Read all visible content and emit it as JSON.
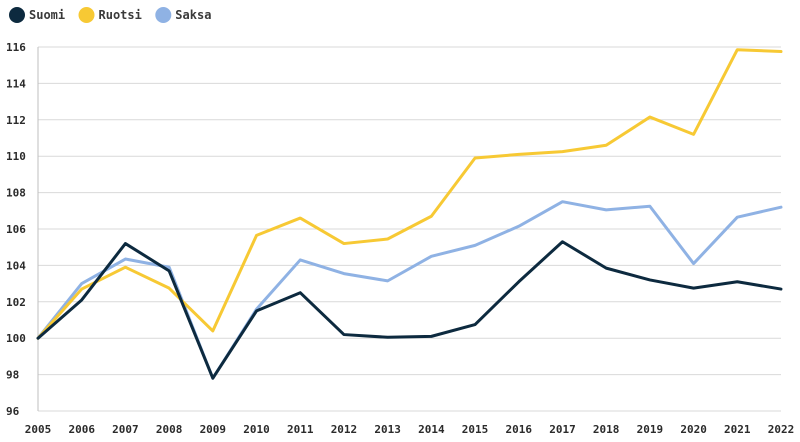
{
  "chart_data": {
    "type": "line",
    "title": "",
    "xlabel": "",
    "ylabel": "",
    "x": [
      "2005",
      "2006",
      "2007",
      "2008",
      "2009",
      "2010",
      "2011",
      "2012",
      "2013",
      "2014",
      "2015",
      "2016",
      "2017",
      "2018",
      "2019",
      "2020",
      "2021",
      "2022"
    ],
    "ylim": [
      96,
      116
    ],
    "yticks": [
      96,
      98,
      100,
      102,
      104,
      106,
      108,
      110,
      112,
      114,
      116
    ],
    "grid": "horizontal",
    "legend_position": "top-left",
    "series": [
      {
        "name": "Suomi",
        "color": "#0d2a3f",
        "values": [
          100.0,
          102.1,
          105.2,
          103.7,
          97.8,
          101.5,
          102.5,
          100.2,
          100.05,
          100.1,
          100.75,
          103.1,
          105.3,
          103.85,
          103.2,
          102.75,
          103.1,
          102.7
        ]
      },
      {
        "name": "Ruotsi",
        "color": "#f7c934",
        "values": [
          100.0,
          102.7,
          103.9,
          102.75,
          100.4,
          105.65,
          106.6,
          105.2,
          105.45,
          106.7,
          109.9,
          110.1,
          110.25,
          110.6,
          112.15,
          111.2,
          115.85,
          115.75
        ]
      },
      {
        "name": "Saksa",
        "color": "#8fb2e4",
        "values": [
          100.0,
          103.0,
          104.35,
          103.9,
          97.8,
          101.6,
          104.3,
          103.55,
          103.15,
          104.5,
          105.1,
          106.15,
          107.5,
          107.05,
          107.25,
          104.1,
          106.65,
          107.2
        ]
      }
    ]
  }
}
